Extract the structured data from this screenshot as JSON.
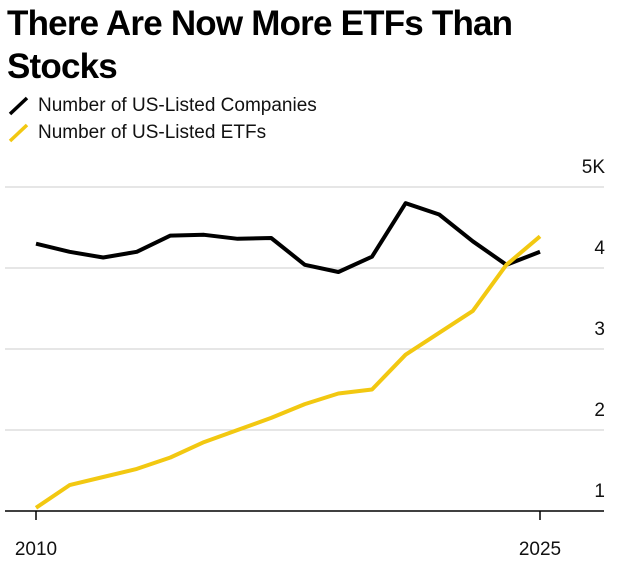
{
  "title": "There Are Now More ETFs Than Stocks",
  "legend": [
    {
      "label": "Number of US-Listed Companies",
      "color": "#000000"
    },
    {
      "label": "Number of US-Listed ETFs",
      "color": "#f2c811"
    }
  ],
  "chart_data": {
    "type": "line",
    "title": "There Are Now More ETFs Than Stocks",
    "xlabel": "",
    "ylabel": "",
    "x": [
      2010,
      2011,
      2012,
      2013,
      2014,
      2015,
      2016,
      2017,
      2018,
      2019,
      2020,
      2021,
      2022,
      2023,
      2024,
      2025
    ],
    "x_tick_labels": [
      "2010",
      "2025"
    ],
    "y_tick_labels": [
      "1",
      "2",
      "3",
      "4",
      "5K"
    ],
    "ylim": [
      0.95,
      5.2
    ],
    "grid": true,
    "legend_position": "top-left",
    "series": [
      {
        "name": "Number of US-Listed Companies",
        "color": "#000000",
        "values": [
          4.3,
          4.2,
          4.13,
          4.2,
          4.4,
          4.41,
          4.36,
          4.37,
          4.04,
          3.95,
          4.14,
          4.8,
          4.66,
          4.33,
          4.04,
          4.2
        ]
      },
      {
        "name": "Number of US-Listed ETFs",
        "color": "#f2c811",
        "values": [
          1.04,
          1.32,
          1.42,
          1.52,
          1.66,
          1.85,
          2.0,
          2.15,
          2.32,
          2.45,
          2.5,
          2.93,
          3.2,
          3.47,
          4.04,
          4.39
        ]
      }
    ]
  }
}
